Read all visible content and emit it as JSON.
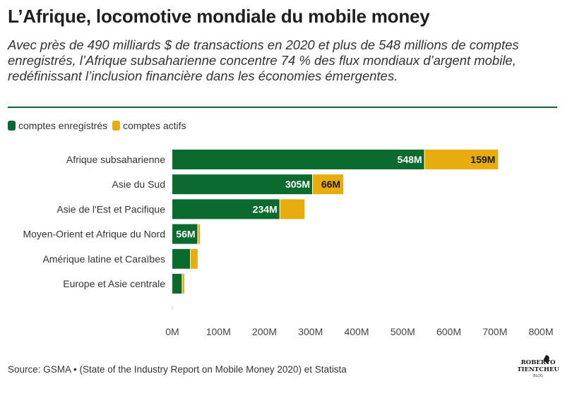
{
  "header": {
    "title": "L’Afrique, locomotive mondiale du mobile money",
    "subtitle": "Avec près de 490 milliards $ de transactions en 2020 et plus de 548 millions de comptes enregistrés, l’Afrique subsaharienne concentre 74 % des flux mondiaux d’argent mobile, redéfinissant l’inclusion financière dans les économies émergentes."
  },
  "legend": {
    "items": [
      {
        "label": "comptes enregistrés",
        "color": "#0b6b2e"
      },
      {
        "label": "comptes actifs",
        "color": "#e8ac0c"
      }
    ]
  },
  "footer": {
    "source": "Source: GSMA • (State of the Industry Report on Mobile Money 2020) et Statista",
    "logo_line1": "ROBERTO",
    "logo_line2": "TIENTCHEU",
    "logo_line3": "BLOG"
  },
  "chart_data": {
    "type": "bar",
    "orientation": "horizontal",
    "stacked": true,
    "categories": [
      "Afrique subsaharienne",
      "Asie du Sud",
      "Asie de l'Est et Pacifique",
      "Moyen-Orient et Afrique du Nord",
      "Amérique latine et Caraïbes",
      "Europe et Asie centrale"
    ],
    "series": [
      {
        "name": "comptes enregistrés",
        "color": "#0b6b2e",
        "values": [
          548,
          305,
          234,
          56,
          40,
          22
        ],
        "data_labels": [
          "548M",
          "305M",
          "234M",
          "56M",
          "",
          ""
        ]
      },
      {
        "name": "comptes actifs",
        "color": "#e8ac0c",
        "values": [
          159,
          66,
          53,
          4,
          15,
          4
        ],
        "data_labels": [
          "159M",
          "66M",
          "",
          "",
          "",
          ""
        ]
      }
    ],
    "xlim": [
      0,
      800
    ],
    "xticks": [
      0,
      100,
      200,
      300,
      400,
      500,
      600,
      700,
      800
    ],
    "xtick_labels": [
      "0M",
      "100M",
      "200M",
      "300M",
      "400M",
      "500M",
      "600M",
      "700M",
      "800M"
    ],
    "grid": false,
    "legend_position": "top-left"
  }
}
